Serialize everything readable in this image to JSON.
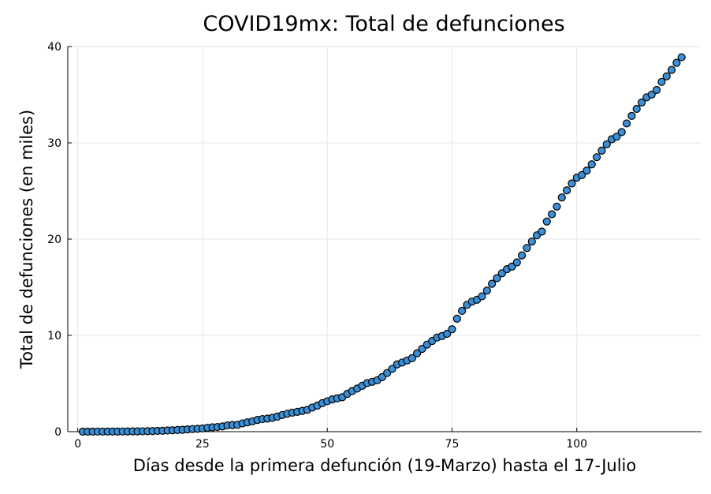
{
  "chart_data": {
    "type": "scatter",
    "title": "COVID19mx: Total de defunciones",
    "xlabel": "Días desde la primera defunción (19-Marzo) hasta el 17-Julio",
    "ylabel": "Total de defunciones (en miles)",
    "xlim": [
      -2,
      125
    ],
    "ylim": [
      0,
      40
    ],
    "xticks": [
      0,
      25,
      50,
      75,
      100
    ],
    "yticks": [
      0,
      10,
      20,
      30,
      40
    ],
    "grid": true,
    "legend": "none",
    "marker_color": "#3a8fd6",
    "x": [
      1,
      2,
      3,
      4,
      5,
      6,
      7,
      8,
      9,
      10,
      11,
      12,
      13,
      14,
      15,
      16,
      17,
      18,
      19,
      20,
      21,
      22,
      23,
      24,
      25,
      26,
      27,
      28,
      29,
      30,
      31,
      32,
      33,
      34,
      35,
      36,
      37,
      38,
      39,
      40,
      41,
      42,
      43,
      44,
      45,
      46,
      47,
      48,
      49,
      50,
      51,
      52,
      53,
      54,
      55,
      56,
      57,
      58,
      59,
      60,
      61,
      62,
      63,
      64,
      65,
      66,
      67,
      68,
      69,
      70,
      71,
      72,
      73,
      74,
      75,
      76,
      77,
      78,
      79,
      80,
      81,
      82,
      83,
      84,
      85,
      86,
      87,
      88,
      89,
      90,
      91,
      92,
      93,
      94,
      95,
      96,
      97,
      98,
      99,
      100,
      101,
      102,
      103,
      104,
      105,
      106,
      107,
      108,
      109,
      110,
      111,
      112,
      113,
      114,
      115,
      116,
      117,
      118,
      119,
      120,
      121
    ],
    "y": [
      0.001,
      0.002,
      0.003,
      0.005,
      0.006,
      0.008,
      0.01,
      0.012,
      0.016,
      0.02,
      0.028,
      0.029,
      0.037,
      0.05,
      0.06,
      0.079,
      0.094,
      0.125,
      0.141,
      0.174,
      0.194,
      0.233,
      0.273,
      0.296,
      0.332,
      0.406,
      0.449,
      0.486,
      0.546,
      0.65,
      0.686,
      0.712,
      0.857,
      0.97,
      1.069,
      1.221,
      1.305,
      1.351,
      1.434,
      1.569,
      1.732,
      1.859,
      1.972,
      2.061,
      2.154,
      2.271,
      2.507,
      2.704,
      2.961,
      3.16,
      3.353,
      3.465,
      3.573,
      3.926,
      4.22,
      4.477,
      4.767,
      5.045,
      5.177,
      5.332,
      5.666,
      6.09,
      6.51,
      6.989,
      7.179,
      7.394,
      7.633,
      8.134,
      8.597,
      9.044,
      9.415,
      9.779,
      9.93,
      10.167,
      10.637,
      11.729,
      12.545,
      13.17,
      13.511,
      13.699,
      14.053,
      14.649,
      15.357,
      15.944,
      16.448,
      16.872,
      17.141,
      17.58,
      18.31,
      19.08,
      19.747,
      20.394,
      20.781,
      21.825,
      22.584,
      23.377,
      24.324,
      25.06,
      25.779,
      26.381,
      26.648,
      27.121,
      27.769,
      28.51,
      29.189,
      29.843,
      30.366,
      30.639,
      31.119,
      32.014,
      32.796,
      33.526,
      34.191,
      34.73,
      35.006,
      35.491,
      36.327,
      36.906,
      37.574,
      38.31,
      38.888
    ]
  }
}
